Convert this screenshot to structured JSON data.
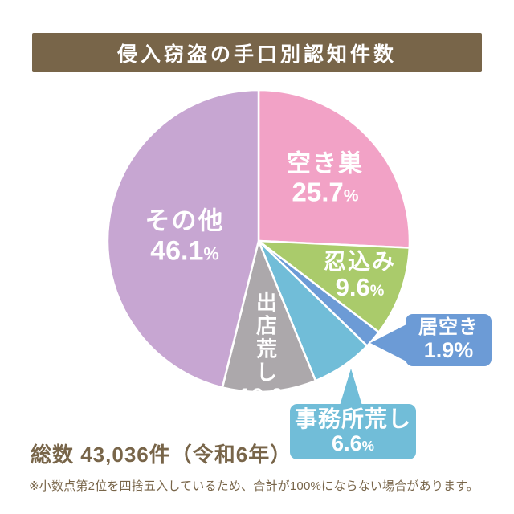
{
  "title": "侵入窃盗の手口別認知件数",
  "total_label": "総数 43,036件（令和6年）",
  "footnote": "※小数点第2位を四捨五入しているため、合計が100%にならない場合があります。",
  "colors": {
    "banner": "#786549",
    "text": "#786549"
  },
  "chart_data": {
    "type": "pie",
    "title": "侵入窃盗の手口別認知件数",
    "unit": "%",
    "start_angle_deg": 0,
    "direction": "clockwise",
    "total_cases": "43,036",
    "year": "令和6年",
    "segments": [
      {
        "label": "空き巣",
        "value": 25.7,
        "display": "25.7",
        "color": "#F2A2C6"
      },
      {
        "label": "忍込み",
        "value": 9.6,
        "display": "9.6",
        "color": "#AACB6B"
      },
      {
        "label": "居空き",
        "value": 1.9,
        "display": "1.9",
        "color": "#6C9BD6",
        "callout": true
      },
      {
        "label": "事務所荒し",
        "value": 6.6,
        "display": "6.6",
        "color": "#71BDD8",
        "callout": true
      },
      {
        "label": "出店荒し",
        "value": 10.0,
        "display": "10.0",
        "color": "#ACA8AB"
      },
      {
        "label": "その他",
        "value": 46.1,
        "display": "46.1",
        "color": "#C7A6D2"
      }
    ]
  }
}
